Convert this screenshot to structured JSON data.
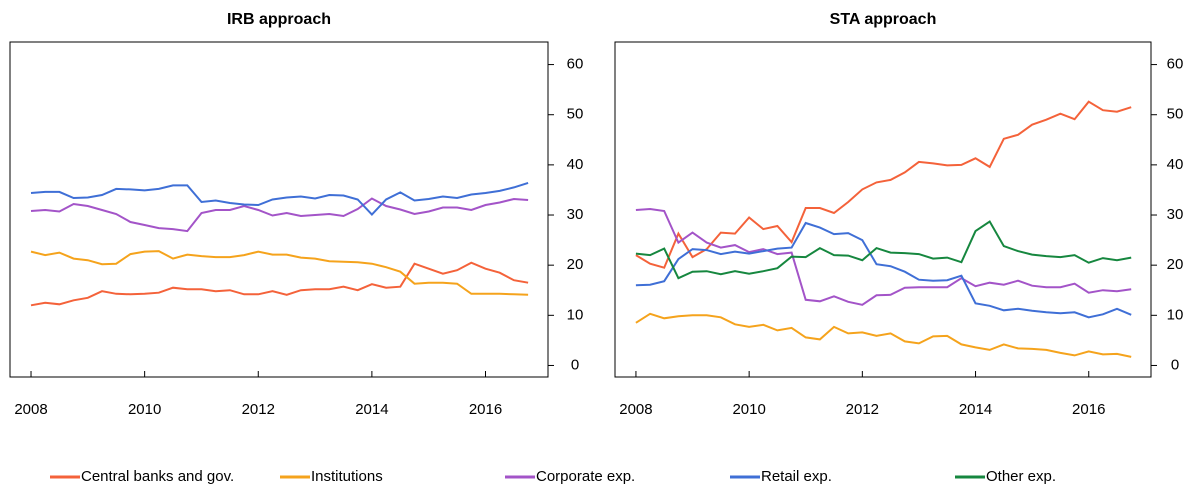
{
  "chart_data": [
    {
      "type": "line",
      "title": "IRB approach",
      "x": [
        2008,
        2008.25,
        2008.5,
        2008.75,
        2009,
        2009.25,
        2009.5,
        2009.75,
        2010,
        2010.25,
        2010.5,
        2010.75,
        2011,
        2011.25,
        2011.5,
        2011.75,
        2012,
        2012.25,
        2012.5,
        2012.75,
        2013,
        2013.25,
        2013.5,
        2013.75,
        2014,
        2014.25,
        2014.5,
        2014.75,
        2015,
        2015.25,
        2015.5,
        2015.75,
        2016,
        2016.25,
        2016.5,
        2016.75
      ],
      "xlim": [
        2007.63,
        2017.1
      ],
      "xticks": [
        2008,
        2010,
        2012,
        2014,
        2016
      ],
      "ylim": [
        -2.3,
        64.5
      ],
      "yticks": [
        0,
        10,
        20,
        30,
        40,
        50,
        60
      ],
      "series": [
        {
          "name": "Central banks and gov.",
          "color": "#f4623a",
          "values": [
            12,
            12.5,
            12.2,
            13,
            13.5,
            14.8,
            14.3,
            14.2,
            14.3,
            14.5,
            15.5,
            15.2,
            15.2,
            14.8,
            15,
            14.2,
            14.2,
            14.8,
            14.1,
            15,
            15.2,
            15.2,
            15.7,
            15,
            16.2,
            15.5,
            15.7,
            20.3,
            19.3,
            18.3,
            19,
            20.5,
            19.3,
            18.5,
            17,
            16.5
          ]
        },
        {
          "name": "Institutions",
          "color": "#f5a31c",
          "values": [
            22.7,
            22,
            22.5,
            21.3,
            21,
            20.2,
            20.3,
            22.2,
            22.7,
            22.8,
            21.3,
            22.1,
            21.8,
            21.6,
            21.6,
            22,
            22.7,
            22.1,
            22.1,
            21.5,
            21.3,
            20.8,
            20.7,
            20.6,
            20.3,
            19.6,
            18.7,
            16.3,
            16.5,
            16.5,
            16.3,
            14.3,
            14.3,
            14.3,
            14.2,
            14.1
          ]
        },
        {
          "name": "Corporate exp.",
          "color": "#a354c8",
          "values": [
            30.8,
            31,
            30.7,
            32.2,
            31.8,
            31,
            30.2,
            28.6,
            28,
            27.4,
            27.2,
            26.8,
            30.4,
            31,
            31,
            31.8,
            31,
            29.9,
            30.4,
            29.8,
            30,
            30.2,
            29.8,
            31.2,
            33.3,
            31.8,
            31.1,
            30.2,
            30.7,
            31.5,
            31.5,
            31,
            32,
            32.5,
            33.2,
            33
          ]
        },
        {
          "name": "Retail exp.",
          "color": "#3f6fd6",
          "values": [
            34.4,
            34.6,
            34.6,
            33.4,
            33.5,
            34,
            35.2,
            35.1,
            34.9,
            35.2,
            35.9,
            35.9,
            32.6,
            32.9,
            32.4,
            32.1,
            32,
            33.1,
            33.5,
            33.7,
            33.3,
            34,
            33.9,
            33.1,
            30.1,
            33.1,
            34.5,
            32.9,
            33.2,
            33.7,
            33.4,
            34.1,
            34.4,
            34.8,
            35.5,
            36.4
          ]
        }
      ]
    },
    {
      "type": "line",
      "title": "STA approach",
      "x": [
        2008,
        2008.25,
        2008.5,
        2008.75,
        2009,
        2009.25,
        2009.5,
        2009.75,
        2010,
        2010.25,
        2010.5,
        2010.75,
        2011,
        2011.25,
        2011.5,
        2011.75,
        2012,
        2012.25,
        2012.5,
        2012.75,
        2013,
        2013.25,
        2013.5,
        2013.75,
        2014,
        2014.25,
        2014.5,
        2014.75,
        2015,
        2015.25,
        2015.5,
        2015.75,
        2016,
        2016.25,
        2016.5,
        2016.75
      ],
      "xlim": [
        2007.63,
        2017.1
      ],
      "xticks": [
        2008,
        2010,
        2012,
        2014,
        2016
      ],
      "ylim": [
        -2.3,
        64.5
      ],
      "yticks": [
        0,
        10,
        20,
        30,
        40,
        50,
        60
      ],
      "series": [
        {
          "name": "Central banks and gov.",
          "color": "#f4623a",
          "values": [
            22,
            20.3,
            19.5,
            26.3,
            21.6,
            23.2,
            26.5,
            26.3,
            29.5,
            27.2,
            27.8,
            24.6,
            31.4,
            31.4,
            30.4,
            32.6,
            35.1,
            36.5,
            37,
            38.5,
            40.6,
            40.3,
            39.9,
            40,
            41.3,
            39.6,
            45.2,
            46,
            48,
            49,
            50.2,
            49.1,
            52.6,
            50.9,
            50.6,
            51.5
          ]
        },
        {
          "name": "Institutions",
          "color": "#f5a31c",
          "values": [
            8.5,
            10.3,
            9.4,
            9.8,
            10,
            10,
            9.6,
            8.2,
            7.7,
            8.1,
            7,
            7.5,
            5.6,
            5.2,
            7.7,
            6.4,
            6.6,
            5.9,
            6.4,
            4.8,
            4.4,
            5.8,
            5.9,
            4.2,
            3.6,
            3.1,
            4.2,
            3.4,
            3.3,
            3.1,
            2.5,
            2,
            2.8,
            2.2,
            2.3,
            1.7
          ]
        },
        {
          "name": "Corporate exp.",
          "color": "#a354c8",
          "values": [
            31,
            31.2,
            30.8,
            24.5,
            26.5,
            24.5,
            23.5,
            24,
            22.6,
            23.2,
            22.2,
            22.5,
            13.1,
            12.8,
            13.8,
            12.7,
            12.1,
            14,
            14.1,
            15.5,
            15.6,
            15.6,
            15.6,
            17.4,
            15.8,
            16.5,
            16.1,
            16.9,
            15.9,
            15.6,
            15.6,
            16.3,
            14.5,
            15,
            14.8,
            15.2
          ]
        },
        {
          "name": "Retail exp.",
          "color": "#3f6fd6",
          "values": [
            16,
            16.1,
            16.8,
            21.2,
            23.2,
            23,
            22.2,
            22.7,
            22.3,
            22.8,
            23.3,
            23.5,
            28.4,
            27.5,
            26.2,
            26.4,
            25,
            20.2,
            19.8,
            18.7,
            17.1,
            16.9,
            17,
            17.9,
            12.4,
            11.9,
            11,
            11.3,
            10.9,
            10.6,
            10.4,
            10.6,
            9.6,
            10.2,
            11.3,
            10.1
          ]
        },
        {
          "name": "Other exp.",
          "color": "#16873f",
          "values": [
            22.3,
            22,
            23.3,
            17.4,
            18.7,
            18.8,
            18.2,
            18.8,
            18.3,
            18.8,
            19.4,
            21.7,
            21.6,
            23.4,
            22,
            21.9,
            21,
            23.4,
            22.5,
            22.4,
            22.2,
            21.3,
            21.5,
            20.6,
            26.8,
            28.7,
            23.8,
            22.8,
            22.1,
            21.8,
            21.6,
            22,
            20.5,
            21.4,
            21,
            21.5
          ]
        }
      ]
    }
  ]
}
